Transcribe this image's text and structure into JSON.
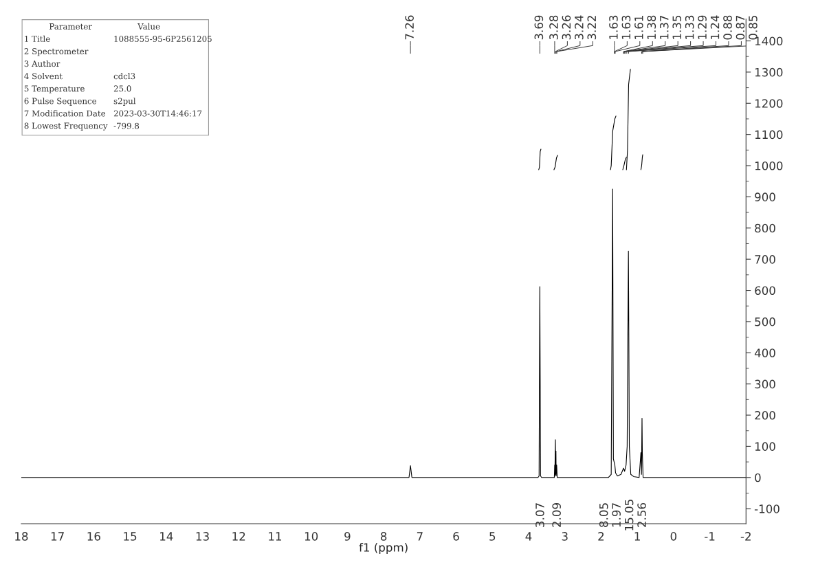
{
  "chart_data": [
    {
      "type": "line",
      "xlabel": "f1 (ppm)",
      "xlim": [
        18,
        -2
      ],
      "xticks": [
        18,
        17,
        16,
        15,
        14,
        13,
        12,
        11,
        10,
        9,
        8,
        7,
        6,
        5,
        4,
        3,
        2,
        1,
        0,
        -1,
        -2
      ],
      "ylim": [
        -148,
        1470
      ],
      "yticks": [
        -100,
        0,
        100,
        200,
        300,
        400,
        500,
        600,
        700,
        800,
        900,
        1000,
        1100,
        1200,
        1300,
        1400
      ],
      "grid": false,
      "legend": false,
      "marker": "none",
      "line_style": "solid",
      "series": [
        {
          "color": "#000000",
          "x": [
            18,
            7.3,
            7.26,
            7.22,
            3.74,
            3.71,
            3.69,
            3.67,
            3.64,
            3.29,
            3.28,
            3.275,
            3.26,
            3.255,
            3.245,
            3.24,
            3.225,
            3.22,
            3.21,
            1.8,
            1.72,
            1.68,
            1.66,
            1.64,
            1.63,
            1.62,
            1.61,
            1.6,
            1.55,
            1.45,
            1.38,
            1.37,
            1.35,
            1.33,
            1.31,
            1.29,
            1.28,
            1.245,
            1.24,
            1.22,
            1.18,
            1.1,
            0.95,
            0.9,
            0.885,
            0.88,
            0.87,
            0.86,
            0.85,
            0.84,
            -2
          ],
          "values": [
            0,
            0,
            38,
            0,
            0,
            5,
            612,
            5,
            0,
            0,
            40,
            5,
            121,
            10,
            85,
            5,
            40,
            27,
            0,
            0,
            10,
            925,
            60,
            50,
            45,
            40,
            28,
            15,
            5,
            10,
            30,
            27,
            20,
            30,
            40,
            80,
            100,
            726,
            600,
            100,
            10,
            3,
            0,
            80,
            10,
            70,
            190,
            75,
            38,
            0,
            0
          ]
        },
        {
          "color": "#000000",
          "x": [
            3.72,
            3.7,
            3.68,
            3.66
          ],
          "values": [
            987,
            995,
            1045,
            1053
          ]
        },
        {
          "color": "#000000",
          "x": [
            3.3,
            3.27,
            3.23,
            3.2
          ],
          "values": [
            987,
            995,
            1025,
            1033
          ]
        },
        {
          "color": "#000000",
          "x": [
            1.74,
            1.72,
            1.68,
            1.62,
            1.59
          ],
          "values": [
            987,
            1000,
            1110,
            1150,
            1159
          ]
        },
        {
          "color": "#000000",
          "x": [
            1.4,
            1.37,
            1.33,
            1.3
          ],
          "values": [
            987,
            1000,
            1020,
            1027
          ]
        },
        {
          "color": "#000000",
          "x": [
            1.3,
            1.27,
            1.24,
            1.19
          ],
          "values": [
            987,
            1050,
            1260,
            1309
          ]
        },
        {
          "color": "#000000",
          "x": [
            0.9,
            0.88,
            0.86,
            0.85
          ],
          "values": [
            987,
            1000,
            1028,
            1035
          ]
        }
      ],
      "annotations": [
        "7.26",
        "3.69",
        "3.28",
        "3.26",
        "3.24",
        "3.22",
        "1.63",
        "1.63",
        "1.61",
        "1.38",
        "1.37",
        "1.35",
        "1.33",
        "1.29",
        "1.24",
        "0.88",
        "0.87",
        "0.85",
        "3.07",
        "2.09",
        "8.05",
        "1.97",
        "15.05",
        "2.56"
      ]
    },
    {
      "type": "other",
      "annotations": [
        "Parameter",
        "Value",
        "1 Title",
        "1088555-95-6P2561205",
        "2 Spectrometer",
        null,
        "3 Author",
        null,
        "4 Solvent",
        "cdcl3",
        "5 Temperature",
        "25.0",
        "6 Pulse Sequence",
        "s2pul",
        "7 Modification Date",
        "2023-03-30T14:46:17",
        "8 Lowest Frequency",
        "-799.8"
      ]
    }
  ]
}
